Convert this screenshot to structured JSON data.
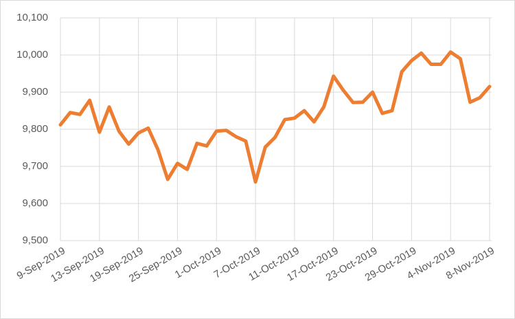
{
  "chart_data": {
    "type": "line",
    "categories": [
      "9-Sep-2019",
      null,
      null,
      null,
      "13-Sep-2019",
      null,
      null,
      null,
      "19-Sep-2019",
      null,
      null,
      null,
      "25-Sep-2019",
      null,
      null,
      null,
      "1-Oct-2019",
      null,
      null,
      null,
      "7-Oct-2019",
      null,
      null,
      null,
      "11-Oct-2019",
      null,
      null,
      null,
      "17-Oct-2019",
      null,
      null,
      null,
      "23-Oct-2019",
      null,
      null,
      null,
      "29-Oct-2019",
      null,
      null,
      null,
      "4-Nov-2019",
      null,
      null,
      null,
      "8-Nov-2019"
    ],
    "values": [
      9812,
      9845,
      9840,
      9878,
      9792,
      9860,
      9795,
      9760,
      9790,
      9803,
      9745,
      9665,
      9708,
      9692,
      9762,
      9755,
      9795,
      9797,
      9780,
      9768,
      9658,
      9752,
      9778,
      9826,
      9830,
      9850,
      9820,
      9860,
      9943,
      9905,
      9872,
      9873,
      9900,
      9843,
      9850,
      9955,
      9985,
      10005,
      9975,
      9975,
      10008,
      9990,
      9873,
      9885,
      9915
    ],
    "color": "#ed7d31",
    "ylim": [
      9500,
      10100
    ],
    "yticks": [
      {
        "value": 9500,
        "label": "9,500"
      },
      {
        "value": 9600,
        "label": "9,600"
      },
      {
        "value": 9700,
        "label": "9,700"
      },
      {
        "value": 9800,
        "label": "9,800"
      },
      {
        "value": 9900,
        "label": "9,900"
      },
      {
        "value": 10000,
        "label": "10,000"
      },
      {
        "value": 10100,
        "label": "10,100"
      }
    ],
    "grid": true
  }
}
